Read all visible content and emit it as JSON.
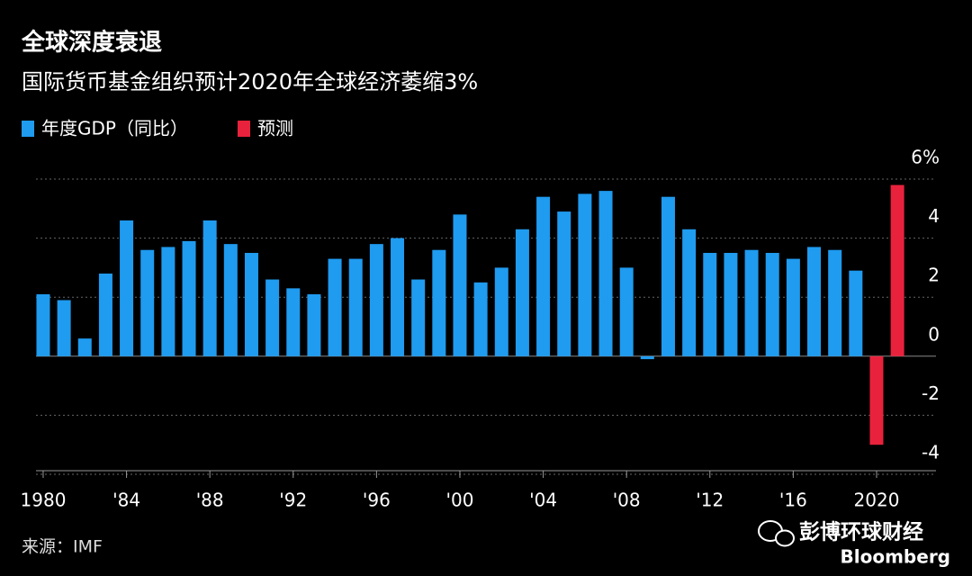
{
  "chart_data": {
    "type": "bar",
    "title": "全球深度衰退",
    "subtitle": "国际货币基金组织预计2020年全球经济萎缩3%",
    "source": "来源：IMF",
    "watermark": "彭博环球财经",
    "brand": "Bloomberg",
    "categories": [
      "1980",
      null,
      null,
      null,
      "'84",
      null,
      null,
      null,
      "'88",
      null,
      null,
      null,
      "'92",
      null,
      null,
      null,
      "'96",
      null,
      null,
      null,
      "'00",
      null,
      null,
      null,
      "'04",
      null,
      null,
      null,
      "'08",
      null,
      null,
      null,
      "'12",
      null,
      null,
      null,
      "'16",
      null,
      null,
      null,
      "2020",
      null
    ],
    "series": [
      {
        "name": "年度GDP（同比）",
        "color": "#1f9bf0",
        "values": [
          2.1,
          1.9,
          0.6,
          2.8,
          4.6,
          3.6,
          3.7,
          3.9,
          4.6,
          3.8,
          3.5,
          2.6,
          2.3,
          2.1,
          3.3,
          3.3,
          3.8,
          4.0,
          2.6,
          3.6,
          4.8,
          2.5,
          3.0,
          4.3,
          5.4,
          4.9,
          5.5,
          5.6,
          3.0,
          -0.1,
          5.4,
          4.3,
          3.5,
          3.5,
          3.6,
          3.5,
          3.3,
          3.7,
          3.6,
          2.9,
          null,
          null
        ]
      },
      {
        "name": "预测",
        "color": "#e8223c",
        "values": [
          null,
          null,
          null,
          null,
          null,
          null,
          null,
          null,
          null,
          null,
          null,
          null,
          null,
          null,
          null,
          null,
          null,
          null,
          null,
          null,
          null,
          null,
          null,
          null,
          null,
          null,
          null,
          null,
          null,
          null,
          null,
          null,
          null,
          null,
          null,
          null,
          null,
          null,
          null,
          null,
          -3,
          5.8
        ]
      }
    ],
    "ylim": [
      -4,
      6
    ],
    "yticks": [
      -4,
      -2,
      0,
      2,
      4,
      {
        "value": 6,
        "label": "6%"
      }
    ],
    "grid": true
  }
}
